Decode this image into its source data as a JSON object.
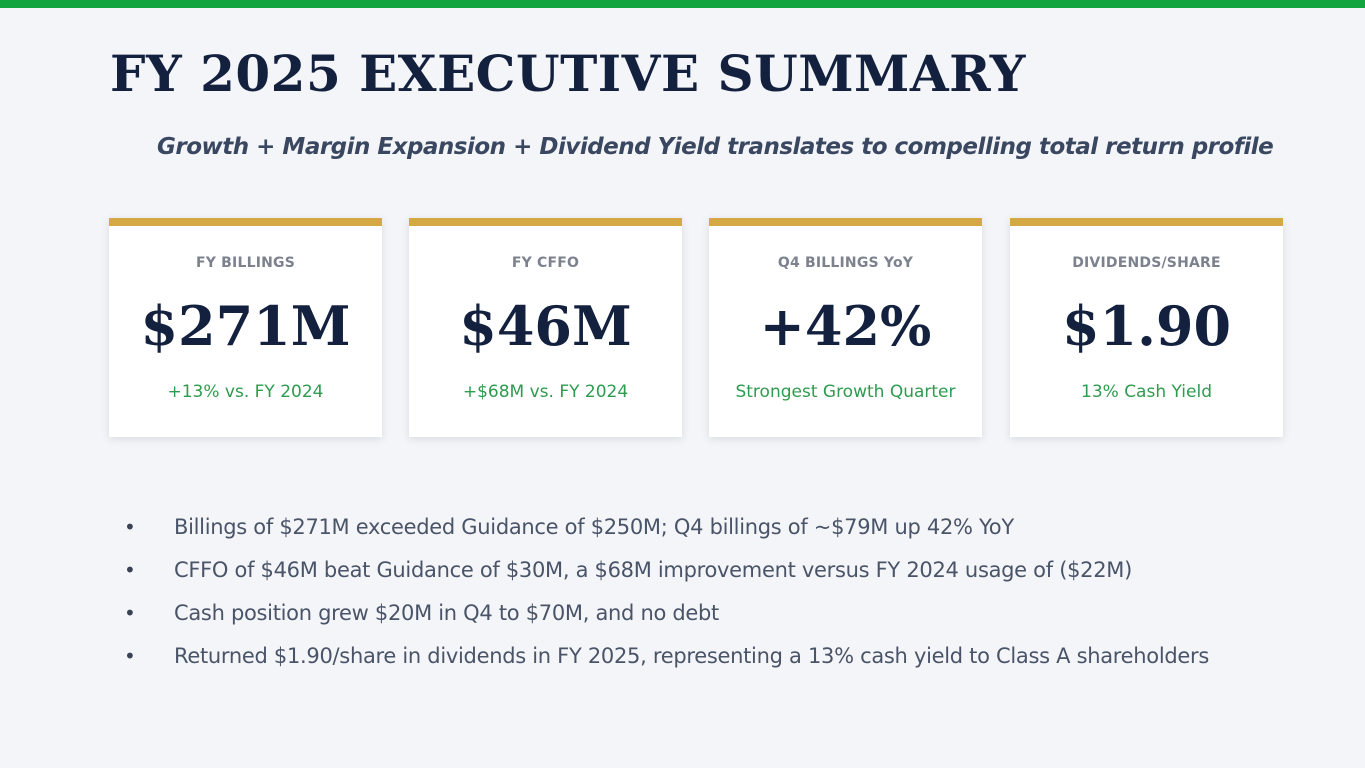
{
  "colors": {
    "top_bar": "#12a43f",
    "title": "#13213f",
    "accent_gold": "#d4a843",
    "positive_green": "#2e9b4e"
  },
  "header": {
    "title": "FY 2025 EXECUTIVE SUMMARY",
    "subtitle": "Growth + Margin Expansion + Dividend Yield translates to compelling total return profile"
  },
  "cards": [
    {
      "label": "FY BILLINGS",
      "value": "$271M",
      "sub": "+13% vs. FY 2024"
    },
    {
      "label": "FY CFFO",
      "value": "$46M",
      "sub": "+$68M vs. FY 2024"
    },
    {
      "label": "Q4 BILLINGS YoY",
      "value": "+42%",
      "sub": "Strongest Growth Quarter"
    },
    {
      "label": "DIVIDENDS/SHARE",
      "value": "$1.90",
      "sub": "13% Cash Yield"
    }
  ],
  "bullets": {
    "marker": "•",
    "items": [
      "Billings of $271M exceeded Guidance of $250M; Q4 billings of ~$79M up 42% YoY",
      "CFFO of $46M beat Guidance of $30M, a $68M improvement versus FY 2024 usage of ($22M)",
      "Cash position grew $20M in Q4 to $70M, and no debt",
      "Returned $1.90/share in dividends in FY 2025, representing a 13% cash yield to Class A shareholders"
    ]
  }
}
